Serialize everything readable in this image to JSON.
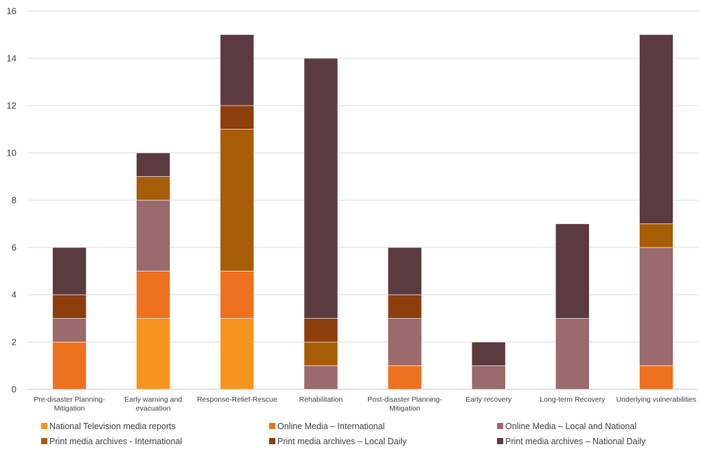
{
  "chart_data": {
    "type": "bar",
    "stacked": true,
    "title": "",
    "xlabel": "",
    "ylabel": "",
    "ylim": [
      0,
      16
    ],
    "yticks": [
      0,
      2,
      4,
      6,
      8,
      10,
      12,
      14,
      16
    ],
    "grid": true,
    "legend_position": "bottom",
    "categories": [
      [
        "Pre-disaster Planning-",
        "Mitigation"
      ],
      [
        "Early warning and",
        "evacuation"
      ],
      [
        "Response-Relief-Rescue"
      ],
      [
        "Rehabilitation"
      ],
      [
        "Post-disaster Planning-",
        "Mitigation"
      ],
      [
        "Early recovery"
      ],
      [
        "Long-term Recovery"
      ],
      [
        "Underlying vulnerabilities"
      ]
    ],
    "series": [
      {
        "name": "National Television media reports",
        "color": "#f7941d",
        "values": [
          0,
          3,
          3,
          0,
          0,
          0,
          0,
          0
        ]
      },
      {
        "name": "Online Media – International",
        "color": "#ee7120",
        "values": [
          2,
          2,
          2,
          0,
          1,
          0,
          0,
          1
        ]
      },
      {
        "name": "Online Media – Local and National",
        "color": "#9b6a6c",
        "values": [
          1,
          3,
          0,
          1,
          2,
          1,
          3,
          5
        ]
      },
      {
        "name": "Print media archives - International",
        "color": "#a65d06",
        "values": [
          0,
          1,
          6,
          1,
          0,
          0,
          0,
          1
        ]
      },
      {
        "name": "Print media archives – Local Daily",
        "color": "#8c3e0c",
        "values": [
          1,
          0,
          1,
          1,
          1,
          0,
          0,
          0
        ]
      },
      {
        "name": "Print media archives – National Daily",
        "color": "#5c3b40",
        "values": [
          2,
          1,
          3,
          11,
          2,
          1,
          4,
          8
        ]
      }
    ]
  }
}
